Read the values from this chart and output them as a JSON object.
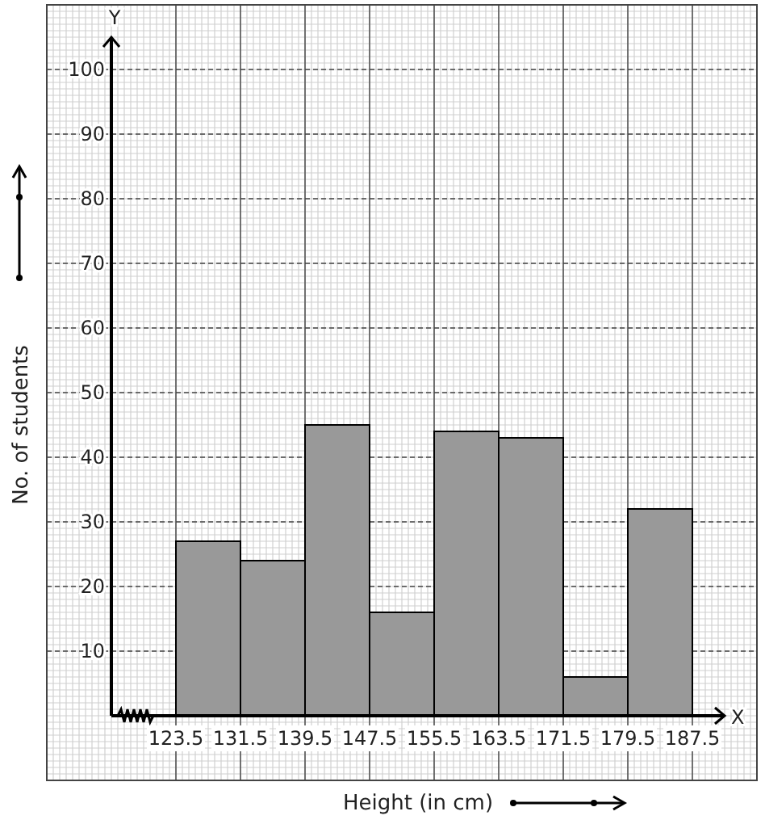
{
  "chart_data": {
    "type": "histogram",
    "xlabel": "Height (in cm)",
    "ylabel": "No. of students",
    "bins": [
      123.5,
      131.5,
      139.5,
      147.5,
      155.5,
      163.5,
      171.5,
      179.5,
      187.5
    ],
    "values": [
      27,
      24,
      45,
      16,
      44,
      43,
      6,
      32
    ],
    "color": "#999999",
    "xlim": [
      115.5,
      191.5
    ],
    "xticks": [
      123.5,
      131.5,
      139.5,
      147.5,
      155.5,
      163.5,
      171.5,
      179.5,
      187.5
    ],
    "ylim": [
      0,
      105
    ],
    "yticks": [
      10,
      20,
      30,
      40,
      50,
      60,
      70,
      80,
      90,
      100
    ],
    "grid": true,
    "annotations": [
      "X",
      "Y"
    ]
  }
}
